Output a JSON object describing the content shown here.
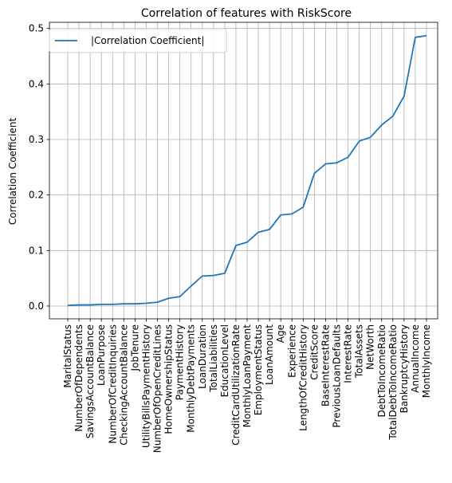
{
  "chart_data": {
    "type": "line",
    "title": "Correlation of features with RiskScore",
    "xlabel": "",
    "ylabel": "Correlation Coefficient",
    "ylim": [
      -0.023,
      0.511
    ],
    "yticks": [
      0.0,
      0.1,
      0.2,
      0.3,
      0.4,
      0.5
    ],
    "ytick_labels": [
      "0.0",
      "0.1",
      "0.2",
      "0.3",
      "0.4",
      "0.5"
    ],
    "grid": true,
    "legend_position": "top-left",
    "categories": [
      "MaritalStatus",
      "NumberOfDependents",
      "SavingsAccountBalance",
      "LoanPurpose",
      "NumberOfCreditInquiries",
      "CheckingAccountBalance",
      "JobTenure",
      "UtilityBillsPaymentHistory",
      "NumberOfOpenCreditLines",
      "HomeOwnershipStatus",
      "PaymentHistory",
      "MonthlyDebtPayments",
      "LoanDuration",
      "TotalLiabilities",
      "EducationLevel",
      "CreditCardUtilizationRate",
      "MonthlyLoanPayment",
      "EmploymentStatus",
      "LoanAmount",
      "Age",
      "Experience",
      "LengthOfCreditHistory",
      "CreditScore",
      "BaseInterestRate",
      "PreviousLoanDefaults",
      "InterestRate",
      "TotalAssets",
      "NetWorth",
      "DebtToIncomeRatio",
      "TotalDebtToIncomeRatio",
      "BankruptcyHistory",
      "AnnualIncome",
      "MonthlyIncome"
    ],
    "series": [
      {
        "name": "|Correlation Coefficient|",
        "color": "#1f77b4",
        "values": [
          0.001,
          0.002,
          0.002,
          0.003,
          0.003,
          0.004,
          0.004,
          0.005,
          0.007,
          0.014,
          0.017,
          0.036,
          0.054,
          0.055,
          0.059,
          0.109,
          0.115,
          0.133,
          0.138,
          0.164,
          0.166,
          0.178,
          0.239,
          0.256,
          0.258,
          0.268,
          0.297,
          0.304,
          0.326,
          0.342,
          0.378,
          0.484,
          0.487
        ]
      }
    ]
  }
}
